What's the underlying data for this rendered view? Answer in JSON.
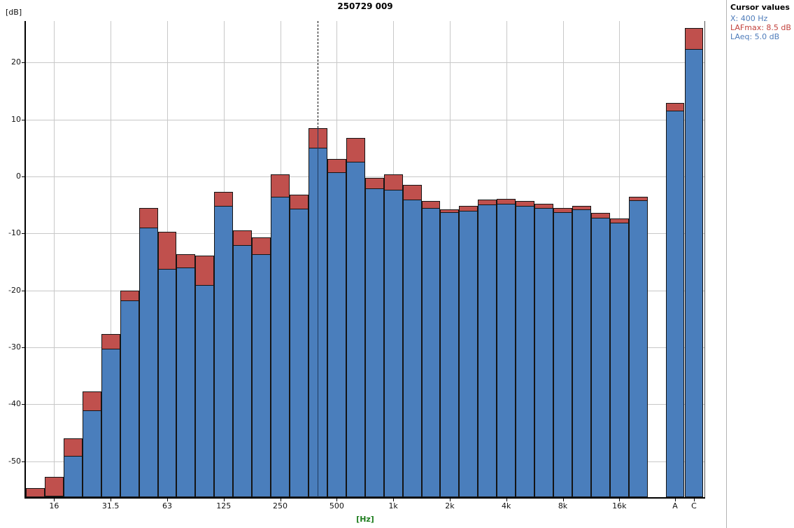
{
  "title": "250729 009",
  "y_axis": {
    "unit": "[dB]",
    "ticks": [
      20,
      10,
      0,
      -10,
      -20,
      -30,
      -40,
      -50
    ]
  },
  "x_axis": {
    "unit": "[Hz]",
    "octave_labels": [
      "16",
      "31.5",
      "63",
      "125",
      "250",
      "500",
      "1k",
      "2k",
      "4k",
      "8k",
      "16k"
    ],
    "octave_tick_indices": [
      1,
      4,
      7,
      10,
      13,
      16,
      19,
      22,
      25,
      28,
      31
    ],
    "extra_labels": [
      "A",
      "C"
    ]
  },
  "cursor_panel": {
    "heading": "Cursor values",
    "x_label": "X: 400 Hz",
    "lafmax_label": "LAFmax: 8.5 dB",
    "laeq_label": "LAeq: 5.0 dB"
  },
  "colors": {
    "bar_blue": "#4A7EBC",
    "bar_red": "#C0504D",
    "grid": "#C8C8C8",
    "text_blue": "#4F7CBA",
    "text_red": "#C2423D",
    "hz_green": "#1E7D1E"
  },
  "chart_data": {
    "type": "bar",
    "title": "250729 009",
    "xlabel": "[Hz]",
    "ylabel": "[dB]",
    "ylim": [
      -56.3,
      27.3
    ],
    "grid": true,
    "legend_position": "none",
    "categories": [
      "12.5",
      "16",
      "20",
      "25",
      "31.5",
      "40",
      "50",
      "63",
      "80",
      "100",
      "125",
      "160",
      "200",
      "250",
      "315",
      "400",
      "500",
      "630",
      "800",
      "1k",
      "1.25k",
      "1.6k",
      "2k",
      "2.5k",
      "3.15k",
      "4k",
      "5k",
      "6.3k",
      "8k",
      "10k",
      "12.5k",
      "16k",
      "20k",
      "A",
      "C"
    ],
    "series": [
      {
        "name": "LAFmax",
        "color": "#C0504D",
        "values": [
          -54.7,
          -52.7,
          -46.0,
          -37.7,
          -27.7,
          -20.0,
          -5.5,
          -9.7,
          -13.6,
          -13.9,
          -2.7,
          -9.5,
          -10.7,
          0.4,
          -3.2,
          8.5,
          3.1,
          6.8,
          -0.3,
          0.4,
          -1.5,
          -4.3,
          -5.8,
          -5.1,
          -4.1,
          -3.9,
          -4.3,
          -4.8,
          -5.5,
          -5.2,
          -6.4,
          -7.4,
          -3.5,
          12.9,
          26.1
        ]
      },
      {
        "name": "LAeq",
        "color": "#4A7EBC",
        "values": [
          -56.2,
          -56.0,
          -49.0,
          -41.0,
          -30.2,
          -21.7,
          -9.0,
          -16.2,
          -16.0,
          -19.1,
          -5.2,
          -12.1,
          -13.7,
          -3.5,
          -5.6,
          5.0,
          0.8,
          2.6,
          -2.1,
          -2.3,
          -4.1,
          -5.5,
          -6.3,
          -6.0,
          -4.9,
          -4.8,
          -5.1,
          -5.5,
          -6.3,
          -5.8,
          -7.2,
          -8.1,
          -4.2,
          11.6,
          22.4
        ]
      }
    ],
    "cursor": {
      "x_category": "400",
      "x_unit": "Hz",
      "LAFmax": 8.5,
      "LAeq": 5.0
    }
  }
}
